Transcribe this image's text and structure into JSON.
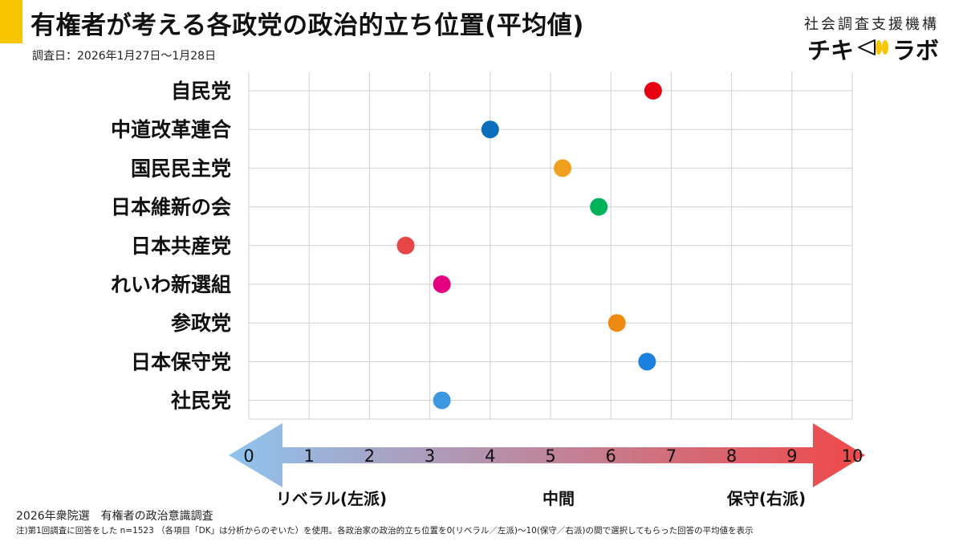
{
  "header": {
    "title": "有権者が考える各政党の政治的立ち位置(平均値)",
    "survey_date": "調査日：2026年1月27日〜1月28日",
    "accent_color": "#f7c600"
  },
  "brand": {
    "org": "社会調査支援機構",
    "logo_left": "チキ",
    "logo_right": "ラボ",
    "logo_icon": "megaphone-icon"
  },
  "chart_data": {
    "type": "scatter",
    "title": "有権者が考える各政党の政治的立ち位置(平均値)",
    "categories": [
      "自民党",
      "中道改革連合",
      "国民民主党",
      "日本維新の会",
      "日本共産党",
      "れいわ新選組",
      "参政党",
      "日本保守党",
      "社民党"
    ],
    "values": [
      6.7,
      4.0,
      5.2,
      5.8,
      2.6,
      3.2,
      6.1,
      6.6,
      3.2
    ],
    "colors": [
      "#e60012",
      "#0a6ebd",
      "#f0a01e",
      "#00b35a",
      "#e84546",
      "#e4007f",
      "#ef8a10",
      "#1a82de",
      "#3d98e0"
    ],
    "xlim": [
      0,
      10
    ],
    "x_ticks": [
      "0",
      "1",
      "2",
      "3",
      "4",
      "5",
      "6",
      "7",
      "8",
      "9",
      "10"
    ],
    "grid": true,
    "axis_arrow": {
      "left_color": "#8ec3ef",
      "right_color": "#f04848",
      "left_label": "リベラル(左派)",
      "center_label": "中間",
      "right_label": "保守(右派)"
    }
  },
  "footer": {
    "source": "2026年衆院選　有権者の政治意識調査",
    "note": "注)第1回調査に回答をした n=1523 （各項目「DK」は分析からのぞいた）を使用。各政治家の政治的立ち位置を0(リベラル／左派)〜10(保守／右派)の間で選択してもらった回答の平均値を表示"
  }
}
